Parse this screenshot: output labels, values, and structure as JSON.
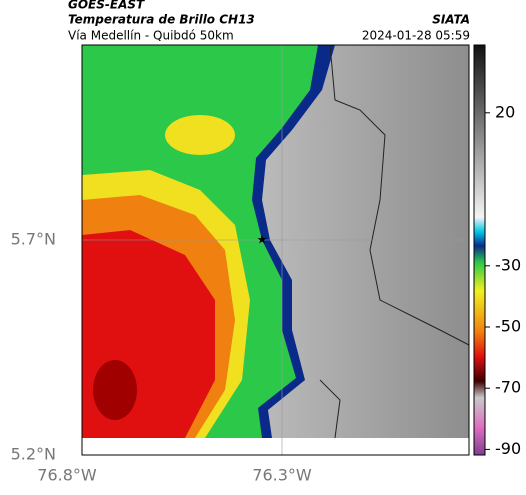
{
  "header": {
    "satellite": "GOES-EAST",
    "product": "Temperatura de Brillo CH13",
    "region": "Vía Medellín - Quibdó 50km",
    "source": "SIATA",
    "datetime": "2024-01-28 05:59"
  },
  "colorbar": {
    "ticks": [
      20,
      -30,
      -50,
      -70,
      -90
    ]
  },
  "axes": {
    "y_labels": [
      "5.7°N",
      "5.2°N"
    ],
    "x_labels": [
      "76.8°W",
      "76.3°W"
    ]
  }
}
